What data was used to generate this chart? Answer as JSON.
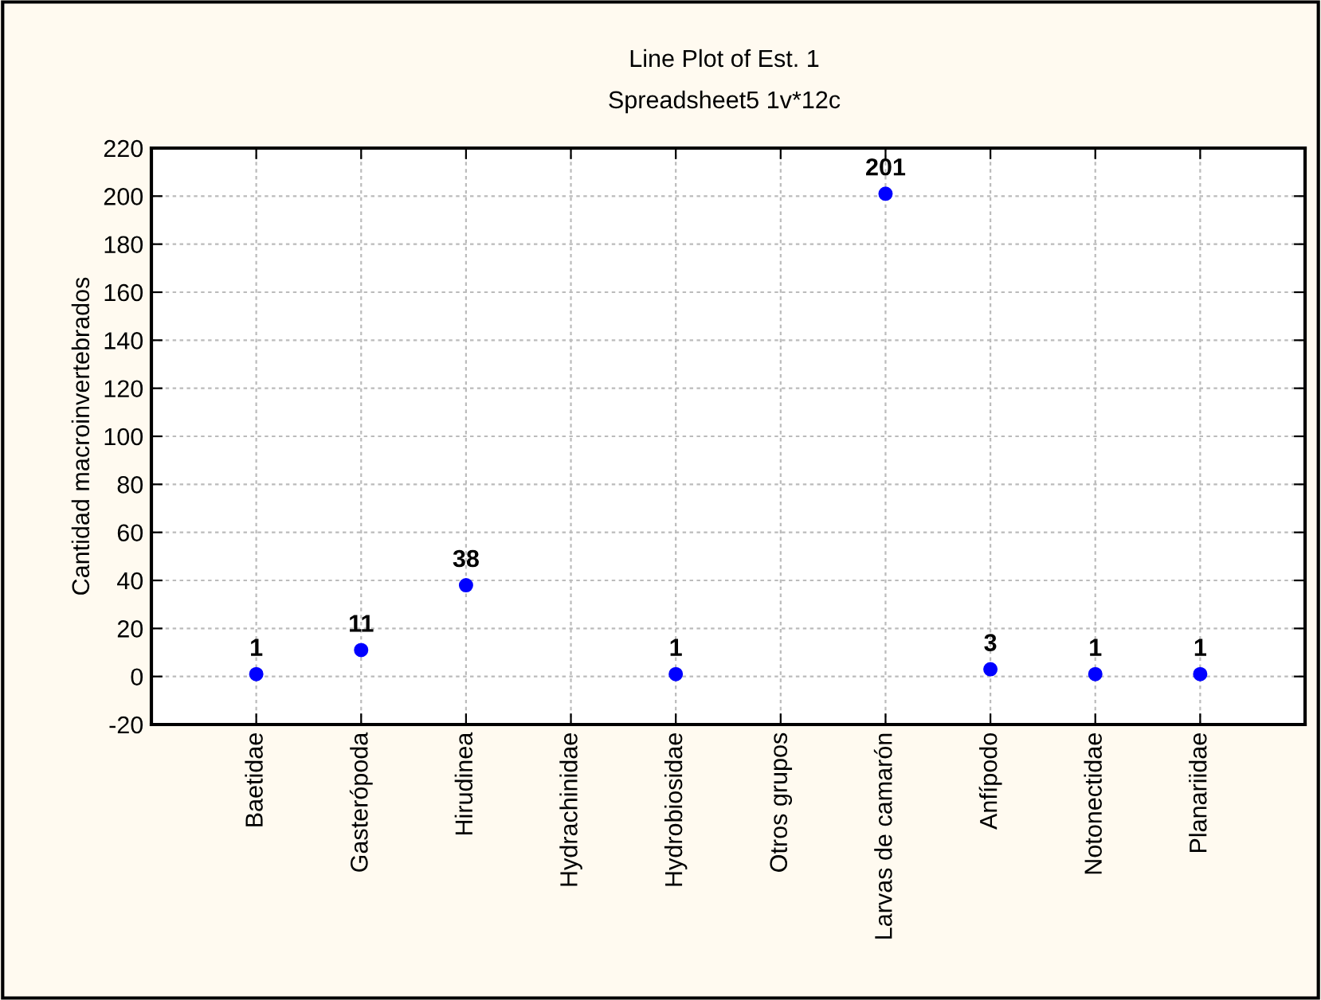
{
  "chart_data": {
    "type": "scatter",
    "title": "Line Plot of Est. 1",
    "subtitle": "Spreadsheet5 1v*12c",
    "ylabel": "Cantidad macroinvertebrados",
    "categories": [
      "Baetidae",
      "Gasterópoda",
      "Hirudinea",
      "Hydrachinidae",
      "Hydrobiosidae",
      "Otros grupos",
      "Larvas de camarón",
      "Anfípodo",
      "Notonectidae",
      "Planariidae"
    ],
    "values": [
      1,
      11,
      38,
      null,
      1,
      null,
      201,
      3,
      1,
      1
    ],
    "color": "#0000ff",
    "marker": "circle",
    "data_labels": true,
    "ylim": [
      -20,
      220
    ],
    "yticks": [
      -20,
      0,
      20,
      40,
      60,
      80,
      100,
      120,
      140,
      160,
      180,
      200,
      220
    ],
    "grid": true
  }
}
